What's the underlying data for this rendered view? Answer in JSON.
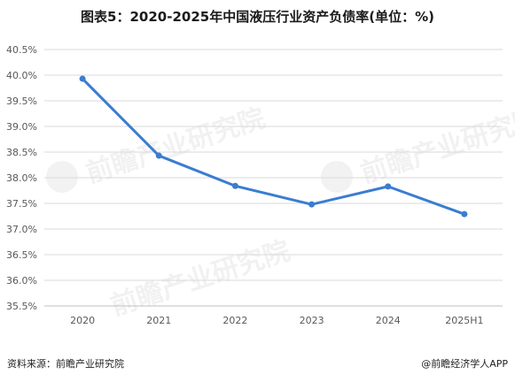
{
  "title": "图表5：2020-2025年中国液压行业资产负债率(单位：%)",
  "footer": {
    "source": "资料来源：前瞻产业研究院",
    "credit": "@前瞻经济学人APP"
  },
  "watermark": "前瞻产业研究院",
  "colors": {
    "line": "#3a7dd0",
    "grid": "#d9d9d9",
    "axis": "#bfbfbf",
    "text": "#595959"
  },
  "chart_data": {
    "type": "line",
    "title": "图表5：2020-2025年中国液压行业资产负债率(单位：%)",
    "categories": [
      "2020",
      "2021",
      "2022",
      "2023",
      "2024",
      "2025H1"
    ],
    "series": [
      {
        "values": [
          39.93,
          38.43,
          37.84,
          37.48,
          37.83,
          37.29
        ]
      }
    ],
    "ylim": [
      35.5,
      40.5
    ],
    "yticks": [
      35.5,
      36.0,
      36.5,
      37.0,
      37.5,
      38.0,
      38.5,
      39.0,
      39.5,
      40.0,
      40.5
    ],
    "ytick_labels": [
      "35.5%",
      "36.0%",
      "36.5%",
      "37.0%",
      "37.5%",
      "38.0%",
      "38.5%",
      "39.0%",
      "39.5%",
      "40.0%",
      "40.5%"
    ],
    "grid": true,
    "legend": "none"
  }
}
